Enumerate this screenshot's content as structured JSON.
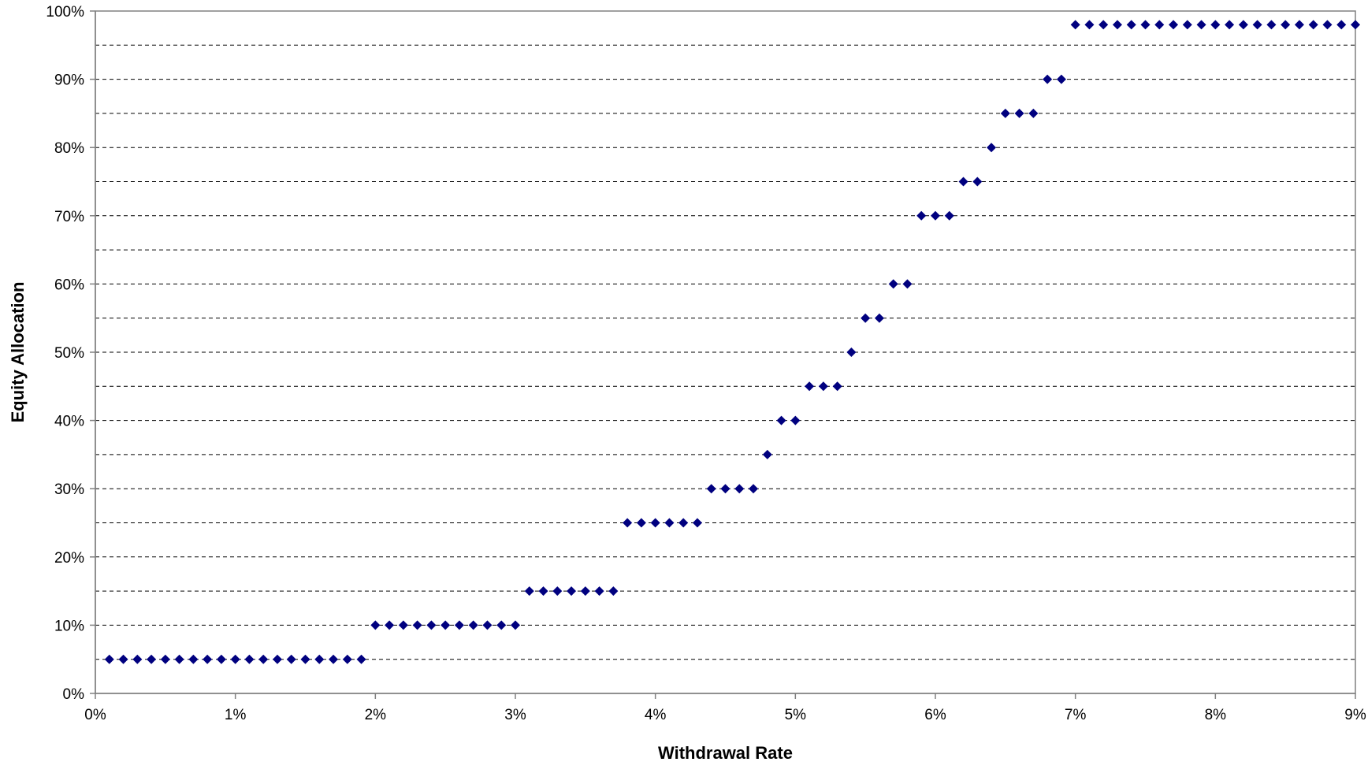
{
  "chart_data": {
    "type": "scatter",
    "title": "",
    "xlabel": "Withdrawal Rate",
    "ylabel": "Equity Allocation",
    "xlim": [
      0,
      9
    ],
    "ylim": [
      0,
      100
    ],
    "x_ticks": [
      0,
      1,
      2,
      3,
      4,
      5,
      6,
      7,
      8,
      9
    ],
    "x_tick_labels": [
      "0%",
      "1%",
      "2%",
      "3%",
      "4%",
      "5%",
      "6%",
      "7%",
      "8%",
      "9%"
    ],
    "y_ticks": [
      0,
      10,
      20,
      30,
      40,
      50,
      60,
      70,
      80,
      90,
      100
    ],
    "y_tick_labels": [
      "0%",
      "10%",
      "20%",
      "30%",
      "40%",
      "50%",
      "60%",
      "70%",
      "80%",
      "90%",
      "100%"
    ],
    "grid": "horizontal dashed every 5%",
    "legend": "none",
    "marker": "diamond",
    "marker_color": "#00007F",
    "series": [
      {
        "x": [
          0.1,
          0.2,
          0.3,
          0.4,
          0.5,
          0.6,
          0.7,
          0.8,
          0.9,
          1.0,
          1.1,
          1.2,
          1.3,
          1.4,
          1.5,
          1.6,
          1.7,
          1.8,
          1.9,
          2.0,
          2.1,
          2.2,
          2.3,
          2.4,
          2.5,
          2.6,
          2.7,
          2.8,
          2.9,
          3.0,
          3.1,
          3.2,
          3.3,
          3.4,
          3.5,
          3.6,
          3.7,
          3.8,
          3.9,
          4.0,
          4.1,
          4.2,
          4.3,
          4.4,
          4.5,
          4.6,
          4.7,
          4.8,
          4.9,
          5.0,
          5.1,
          5.2,
          5.3,
          5.4,
          5.5,
          5.6,
          5.7,
          5.8,
          5.9,
          6.0,
          6.1,
          6.2,
          6.3,
          6.4,
          6.5,
          6.6,
          6.7,
          6.8,
          6.9,
          7.0,
          7.1,
          7.2,
          7.3,
          7.4,
          7.5,
          7.6,
          7.7,
          7.8,
          7.9,
          8.0,
          8.1,
          8.2,
          8.3,
          8.4,
          8.5,
          8.6,
          8.7,
          8.8,
          8.9,
          9.0
        ],
        "y": [
          5,
          5,
          5,
          5,
          5,
          5,
          5,
          5,
          5,
          5,
          5,
          5,
          5,
          5,
          5,
          5,
          5,
          5,
          5,
          10,
          10,
          10,
          10,
          10,
          10,
          10,
          10,
          10,
          10,
          10,
          15,
          15,
          15,
          15,
          15,
          15,
          15,
          25,
          25,
          25,
          25,
          25,
          25,
          30,
          30,
          30,
          30,
          35,
          40,
          40,
          45,
          45,
          45,
          50,
          55,
          55,
          60,
          60,
          70,
          70,
          70,
          75,
          75,
          80,
          85,
          85,
          85,
          90,
          90,
          98,
          98,
          98,
          98,
          98,
          98,
          98,
          98,
          98,
          98,
          98,
          98,
          98,
          98,
          98,
          98,
          98,
          98,
          98,
          98,
          98
        ]
      }
    ]
  }
}
